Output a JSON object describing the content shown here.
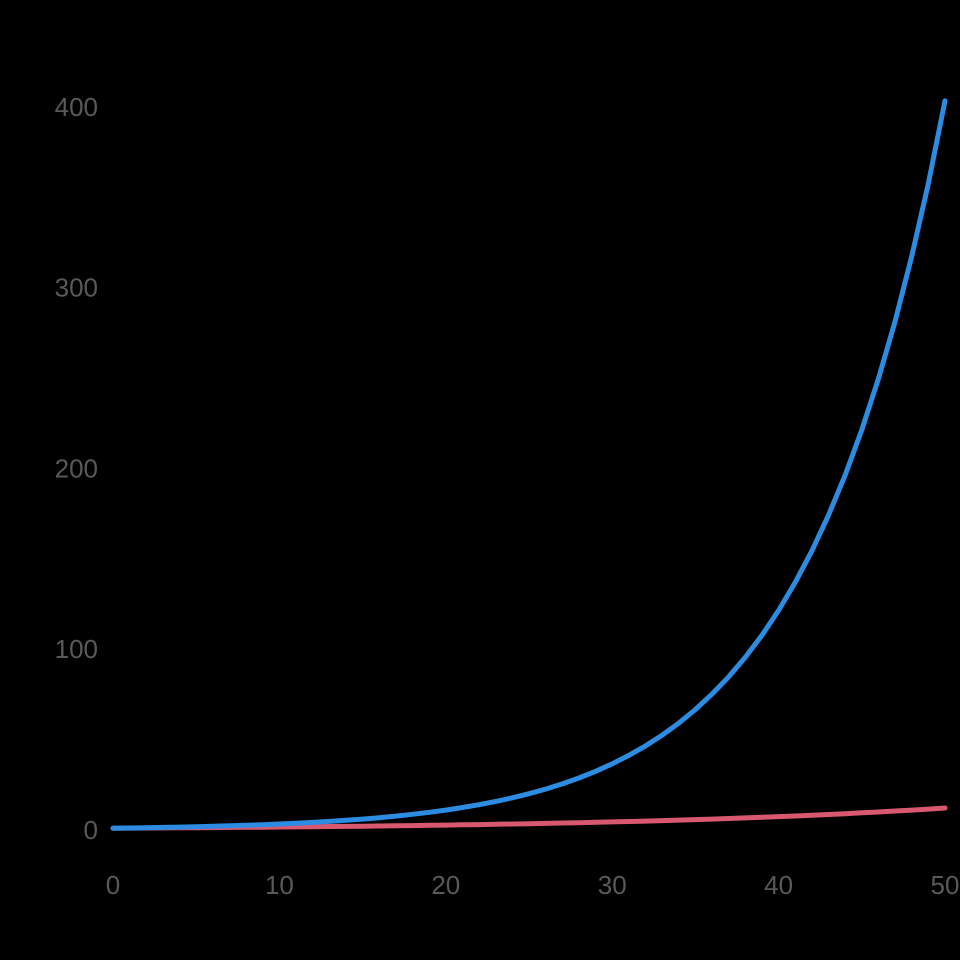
{
  "chart_data": {
    "type": "line",
    "title": "",
    "xlabel": "",
    "ylabel": "",
    "background_color": "#000000",
    "axis_label_color": "#58595b",
    "grid": false,
    "legend": "none",
    "xlim": [
      0,
      50
    ],
    "ylim": [
      0,
      400
    ],
    "x_ticks": [
      0,
      10,
      20,
      30,
      40,
      50
    ],
    "y_ticks": [
      0,
      100,
      200,
      300,
      400
    ],
    "x_step": 1,
    "series": [
      {
        "id": "red",
        "color": "#d8586f",
        "values": [
          1,
          1.05,
          1.11,
          1.16,
          1.22,
          1.28,
          1.35,
          1.42,
          1.49,
          1.57,
          1.65,
          1.73,
          1.82,
          1.92,
          2.01,
          2.12,
          2.23,
          2.34,
          2.46,
          2.59,
          2.72,
          2.86,
          3.0,
          3.16,
          3.32,
          3.49,
          3.67,
          3.86,
          4.06,
          4.26,
          4.48,
          4.71,
          4.95,
          5.21,
          5.47,
          5.75,
          6.05,
          6.36,
          6.69,
          7.03,
          7.39,
          7.77,
          8.17,
          8.58,
          9.03,
          9.49,
          9.97,
          10.49,
          11.02,
          11.59,
          12.18
        ]
      },
      {
        "id": "blue",
        "color": "#2b8ce2",
        "values": [
          1,
          1.13,
          1.27,
          1.43,
          1.62,
          1.82,
          2.05,
          2.32,
          2.61,
          2.94,
          3.32,
          3.74,
          4.22,
          4.76,
          5.37,
          6.05,
          6.82,
          7.69,
          8.67,
          9.78,
          11.02,
          12.43,
          14.01,
          15.8,
          17.81,
          20.09,
          22.65,
          25.53,
          28.79,
          32.46,
          36.6,
          41.26,
          46.53,
          52.46,
          59.15,
          66.69,
          75.19,
          84.78,
          95.58,
          107.77,
          121.51,
          137.0,
          154.47,
          174.16,
          196.37,
          221.41,
          249.64,
          281.46,
          317.35,
          357.81,
          403.43
        ]
      }
    ]
  }
}
